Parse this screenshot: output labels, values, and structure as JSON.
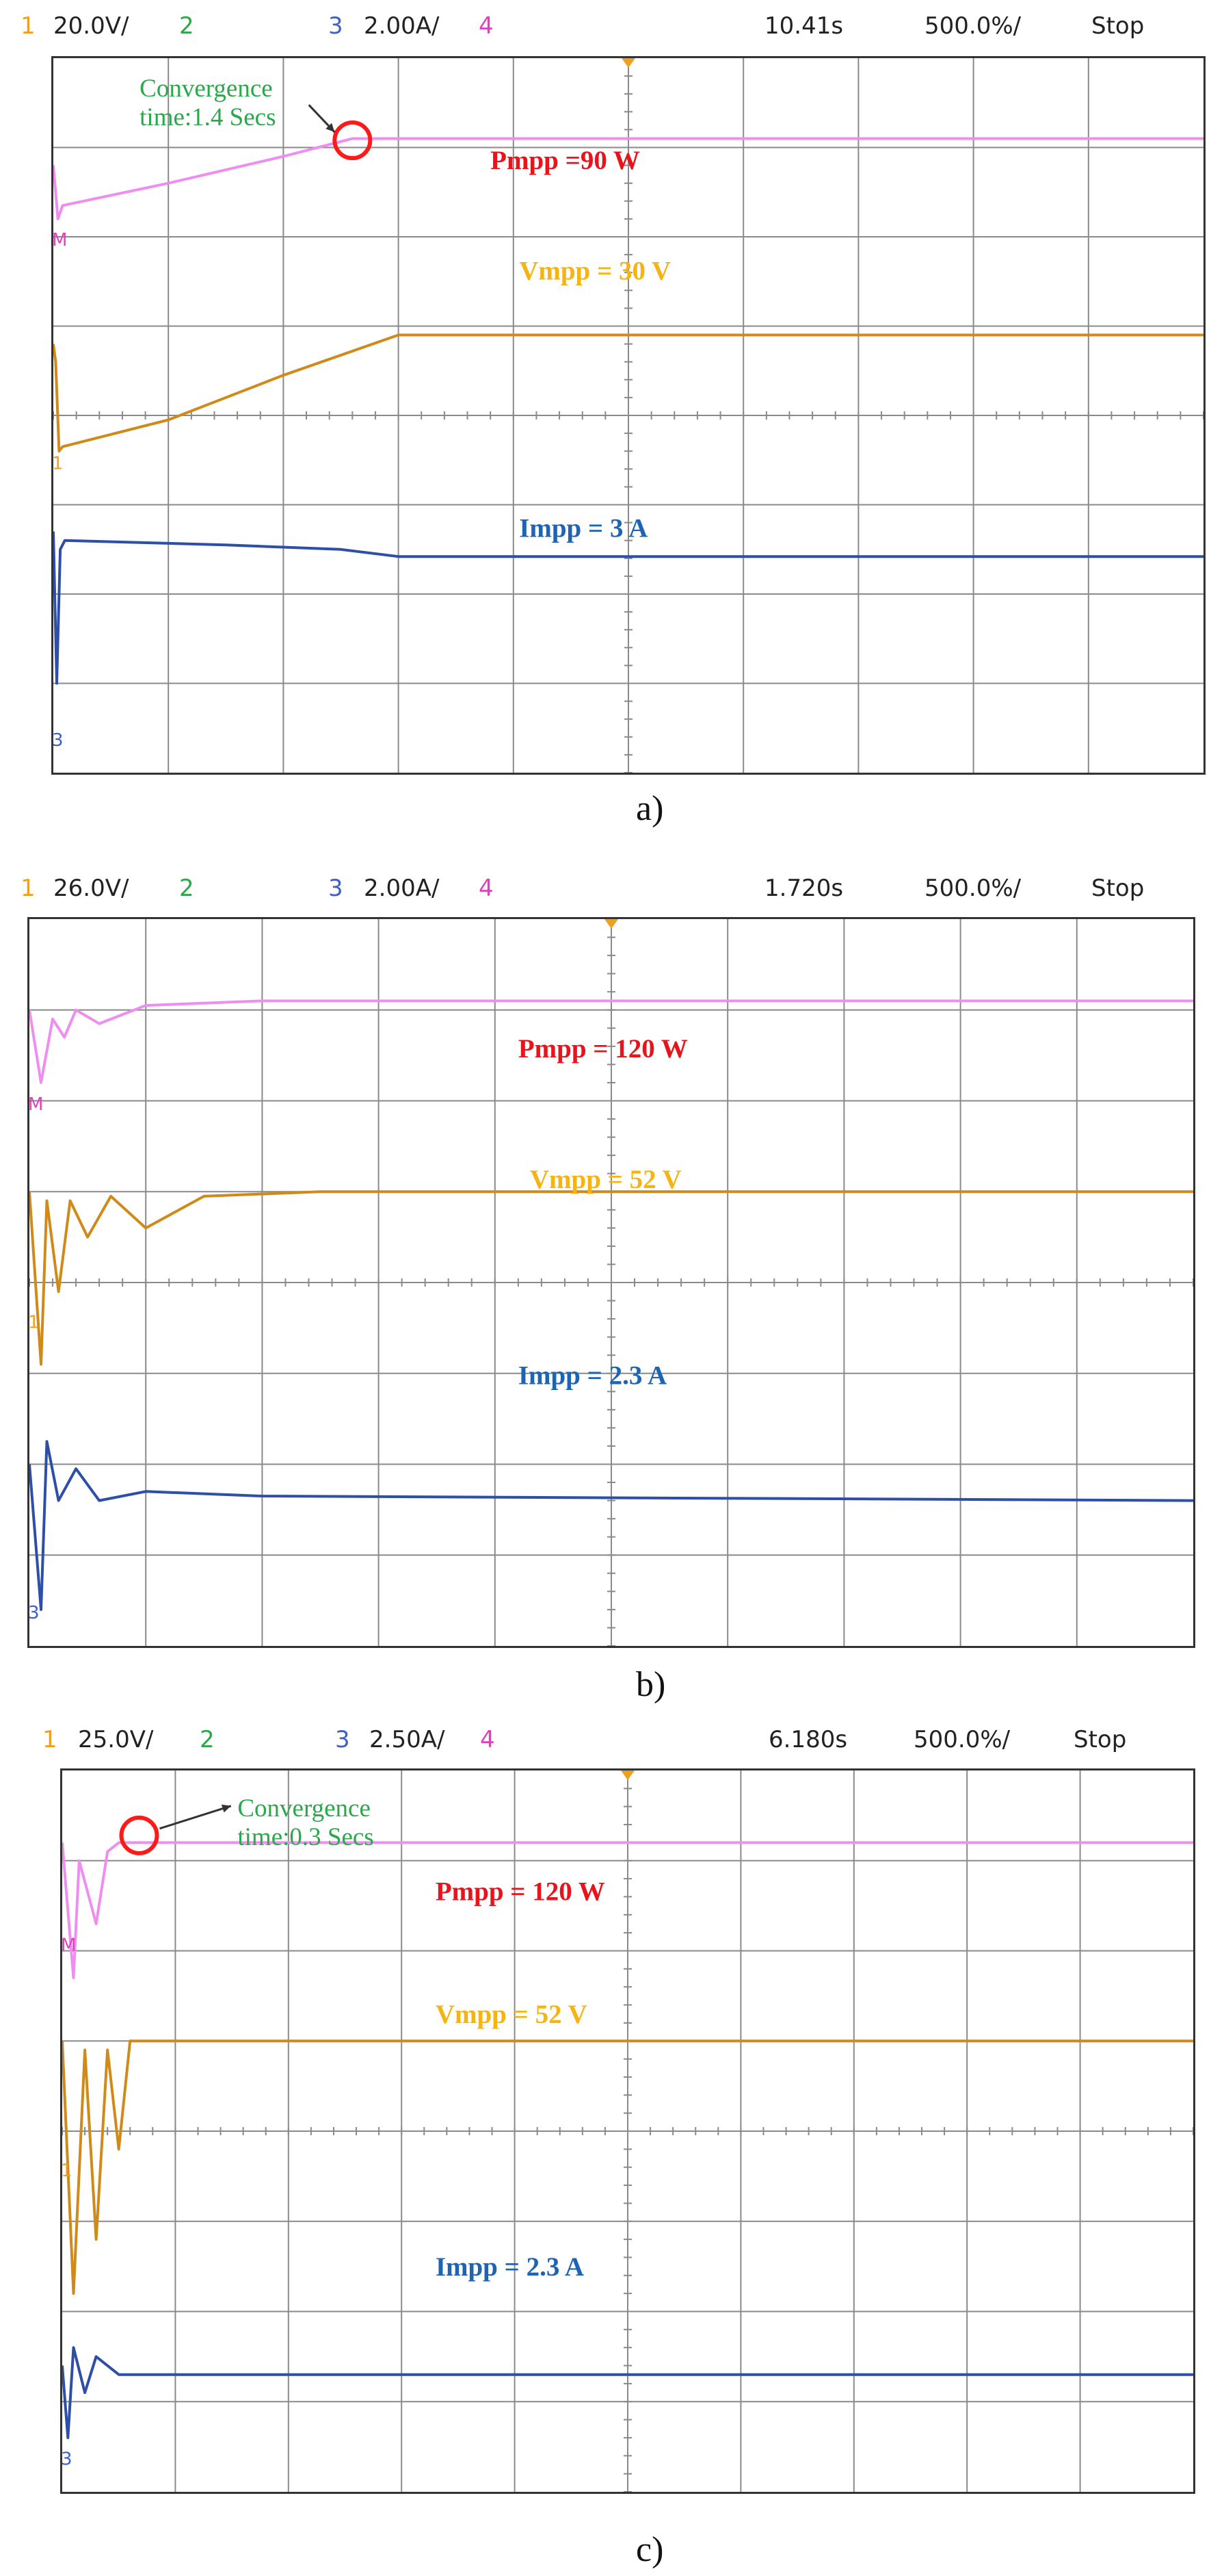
{
  "colors": {
    "power": "#ee8ef0",
    "voltage": "#d08a1a",
    "current": "#2e4fa8",
    "power_label": "#e8141c",
    "voltage_label": "#f5b414",
    "current_label": "#1e64b4",
    "annotation": "#2aa84a",
    "marker": "#ff1a1a",
    "ch1": "#f0a020",
    "ch2": "#2aa84a",
    "ch3": "#4060c8",
    "ch4": "#e040c0",
    "grid": "#8a8a8a"
  },
  "chart_data": [
    {
      "type": "line",
      "caption": "a)",
      "header": {
        "ch1_num": "1",
        "ch1_scale": "20.0V/",
        "ch2_num": "2",
        "ch3_num": "3",
        "ch3_scale": "2.00A/",
        "ch4_num": "4",
        "time": "10.41s",
        "timebase": "500.0%/",
        "status": "Stop"
      },
      "markers": {
        "m": "M",
        "ch1": "1",
        "ch3": "3"
      },
      "labels": {
        "power": "Pmpp =90 W",
        "voltage": "Vmpp = 30 V",
        "current": "Impp = 3 A"
      },
      "annotation": {
        "line1": "Convergence",
        "line2": "time:1.4 Secs"
      },
      "x_unit": "div",
      "xlim": [
        0,
        10
      ],
      "y_unit": "div",
      "ylim": [
        0,
        8
      ],
      "series": [
        {
          "name": "Pmpp =90 W",
          "color_key": "power",
          "x": [
            0,
            0.04,
            0.08,
            1.0,
            2.0,
            2.6,
            10
          ],
          "y": [
            6.8,
            6.2,
            6.35,
            6.6,
            6.9,
            7.1,
            7.1
          ]
        },
        {
          "name": "Vmpp = 30 V",
          "color_key": "voltage",
          "x": [
            0,
            0.02,
            0.05,
            0.08,
            1.0,
            2.0,
            3.0,
            10
          ],
          "y": [
            4.8,
            4.6,
            3.6,
            3.65,
            3.95,
            4.45,
            4.9,
            4.9
          ]
        },
        {
          "name": "Impp = 3 A",
          "color_key": "current",
          "x": [
            0,
            0.03,
            0.06,
            0.1,
            1.5,
            2.5,
            3.0,
            10
          ],
          "y": [
            2.7,
            1.0,
            2.5,
            2.6,
            2.55,
            2.5,
            2.42,
            2.42
          ]
        }
      ]
    },
    {
      "type": "line",
      "caption": "b)",
      "header": {
        "ch1_num": "1",
        "ch1_scale": "26.0V/",
        "ch2_num": "2",
        "ch3_num": "3",
        "ch3_scale": "2.00A/",
        "ch4_num": "4",
        "time": "1.720s",
        "timebase": "500.0%/",
        "status": "Stop"
      },
      "markers": {
        "m": "M",
        "ch1": "1",
        "ch3": "3"
      },
      "labels": {
        "power": "Pmpp = 120 W",
        "voltage": "Vmpp = 52 V",
        "current": "Impp = 2.3 A"
      },
      "x_unit": "div",
      "xlim": [
        0,
        10
      ],
      "y_unit": "div",
      "ylim": [
        0,
        8
      ],
      "series": [
        {
          "name": "Pmpp = 120 W",
          "color_key": "power",
          "x": [
            0,
            0.1,
            0.2,
            0.3,
            0.4,
            0.6,
            1.0,
            2.0,
            10
          ],
          "y": [
            7.0,
            6.2,
            6.9,
            6.7,
            7.0,
            6.85,
            7.05,
            7.1,
            7.1
          ]
        },
        {
          "name": "Vmpp = 52 V",
          "color_key": "voltage",
          "x": [
            0,
            0.1,
            0.15,
            0.25,
            0.35,
            0.5,
            0.7,
            1.0,
            1.5,
            2.5,
            10
          ],
          "y": [
            5.0,
            3.1,
            4.9,
            3.9,
            4.9,
            4.5,
            4.95,
            4.6,
            4.95,
            5.0,
            5.0
          ]
        },
        {
          "name": "Impp = 2.3 A",
          "color_key": "current",
          "x": [
            0,
            0.1,
            0.15,
            0.25,
            0.4,
            0.6,
            1.0,
            2.0,
            10
          ],
          "y": [
            2.0,
            0.4,
            2.25,
            1.6,
            1.95,
            1.6,
            1.7,
            1.65,
            1.6
          ]
        }
      ]
    },
    {
      "type": "line",
      "caption": "c)",
      "header": {
        "ch1_num": "1",
        "ch1_scale": "25.0V/",
        "ch2_num": "2",
        "ch3_num": "3",
        "ch3_scale": "2.50A/",
        "ch4_num": "4",
        "time": "6.180s",
        "timebase": "500.0%/",
        "status": "Stop"
      },
      "markers": {
        "m": "M",
        "ch1": "1",
        "ch3": "3"
      },
      "labels": {
        "power": "Pmpp = 120 W",
        "voltage": "Vmpp = 52 V",
        "current": "Impp = 2.3 A"
      },
      "annotation": {
        "line1": "Convergence",
        "line2": "time:0.3 Secs"
      },
      "x_unit": "div",
      "xlim": [
        0,
        10
      ],
      "y_unit": "div",
      "ylim": [
        0,
        8
      ],
      "series": [
        {
          "name": "Pmpp = 120 W",
          "color_key": "power",
          "x": [
            0,
            0.1,
            0.15,
            0.3,
            0.4,
            0.5,
            10
          ],
          "y": [
            7.2,
            5.7,
            7.0,
            6.3,
            7.1,
            7.2,
            7.2
          ]
        },
        {
          "name": "Vmpp = 52 V",
          "color_key": "voltage",
          "x": [
            0,
            0.1,
            0.2,
            0.3,
            0.4,
            0.5,
            0.6,
            10
          ],
          "y": [
            5.0,
            2.2,
            4.9,
            2.8,
            4.9,
            3.8,
            5.0,
            5.0
          ]
        },
        {
          "name": "Impp = 2.3 A",
          "color_key": "current",
          "x": [
            0,
            0.05,
            0.1,
            0.2,
            0.3,
            0.5,
            10
          ],
          "y": [
            1.4,
            0.6,
            1.6,
            1.1,
            1.5,
            1.3,
            1.3
          ]
        }
      ]
    }
  ]
}
